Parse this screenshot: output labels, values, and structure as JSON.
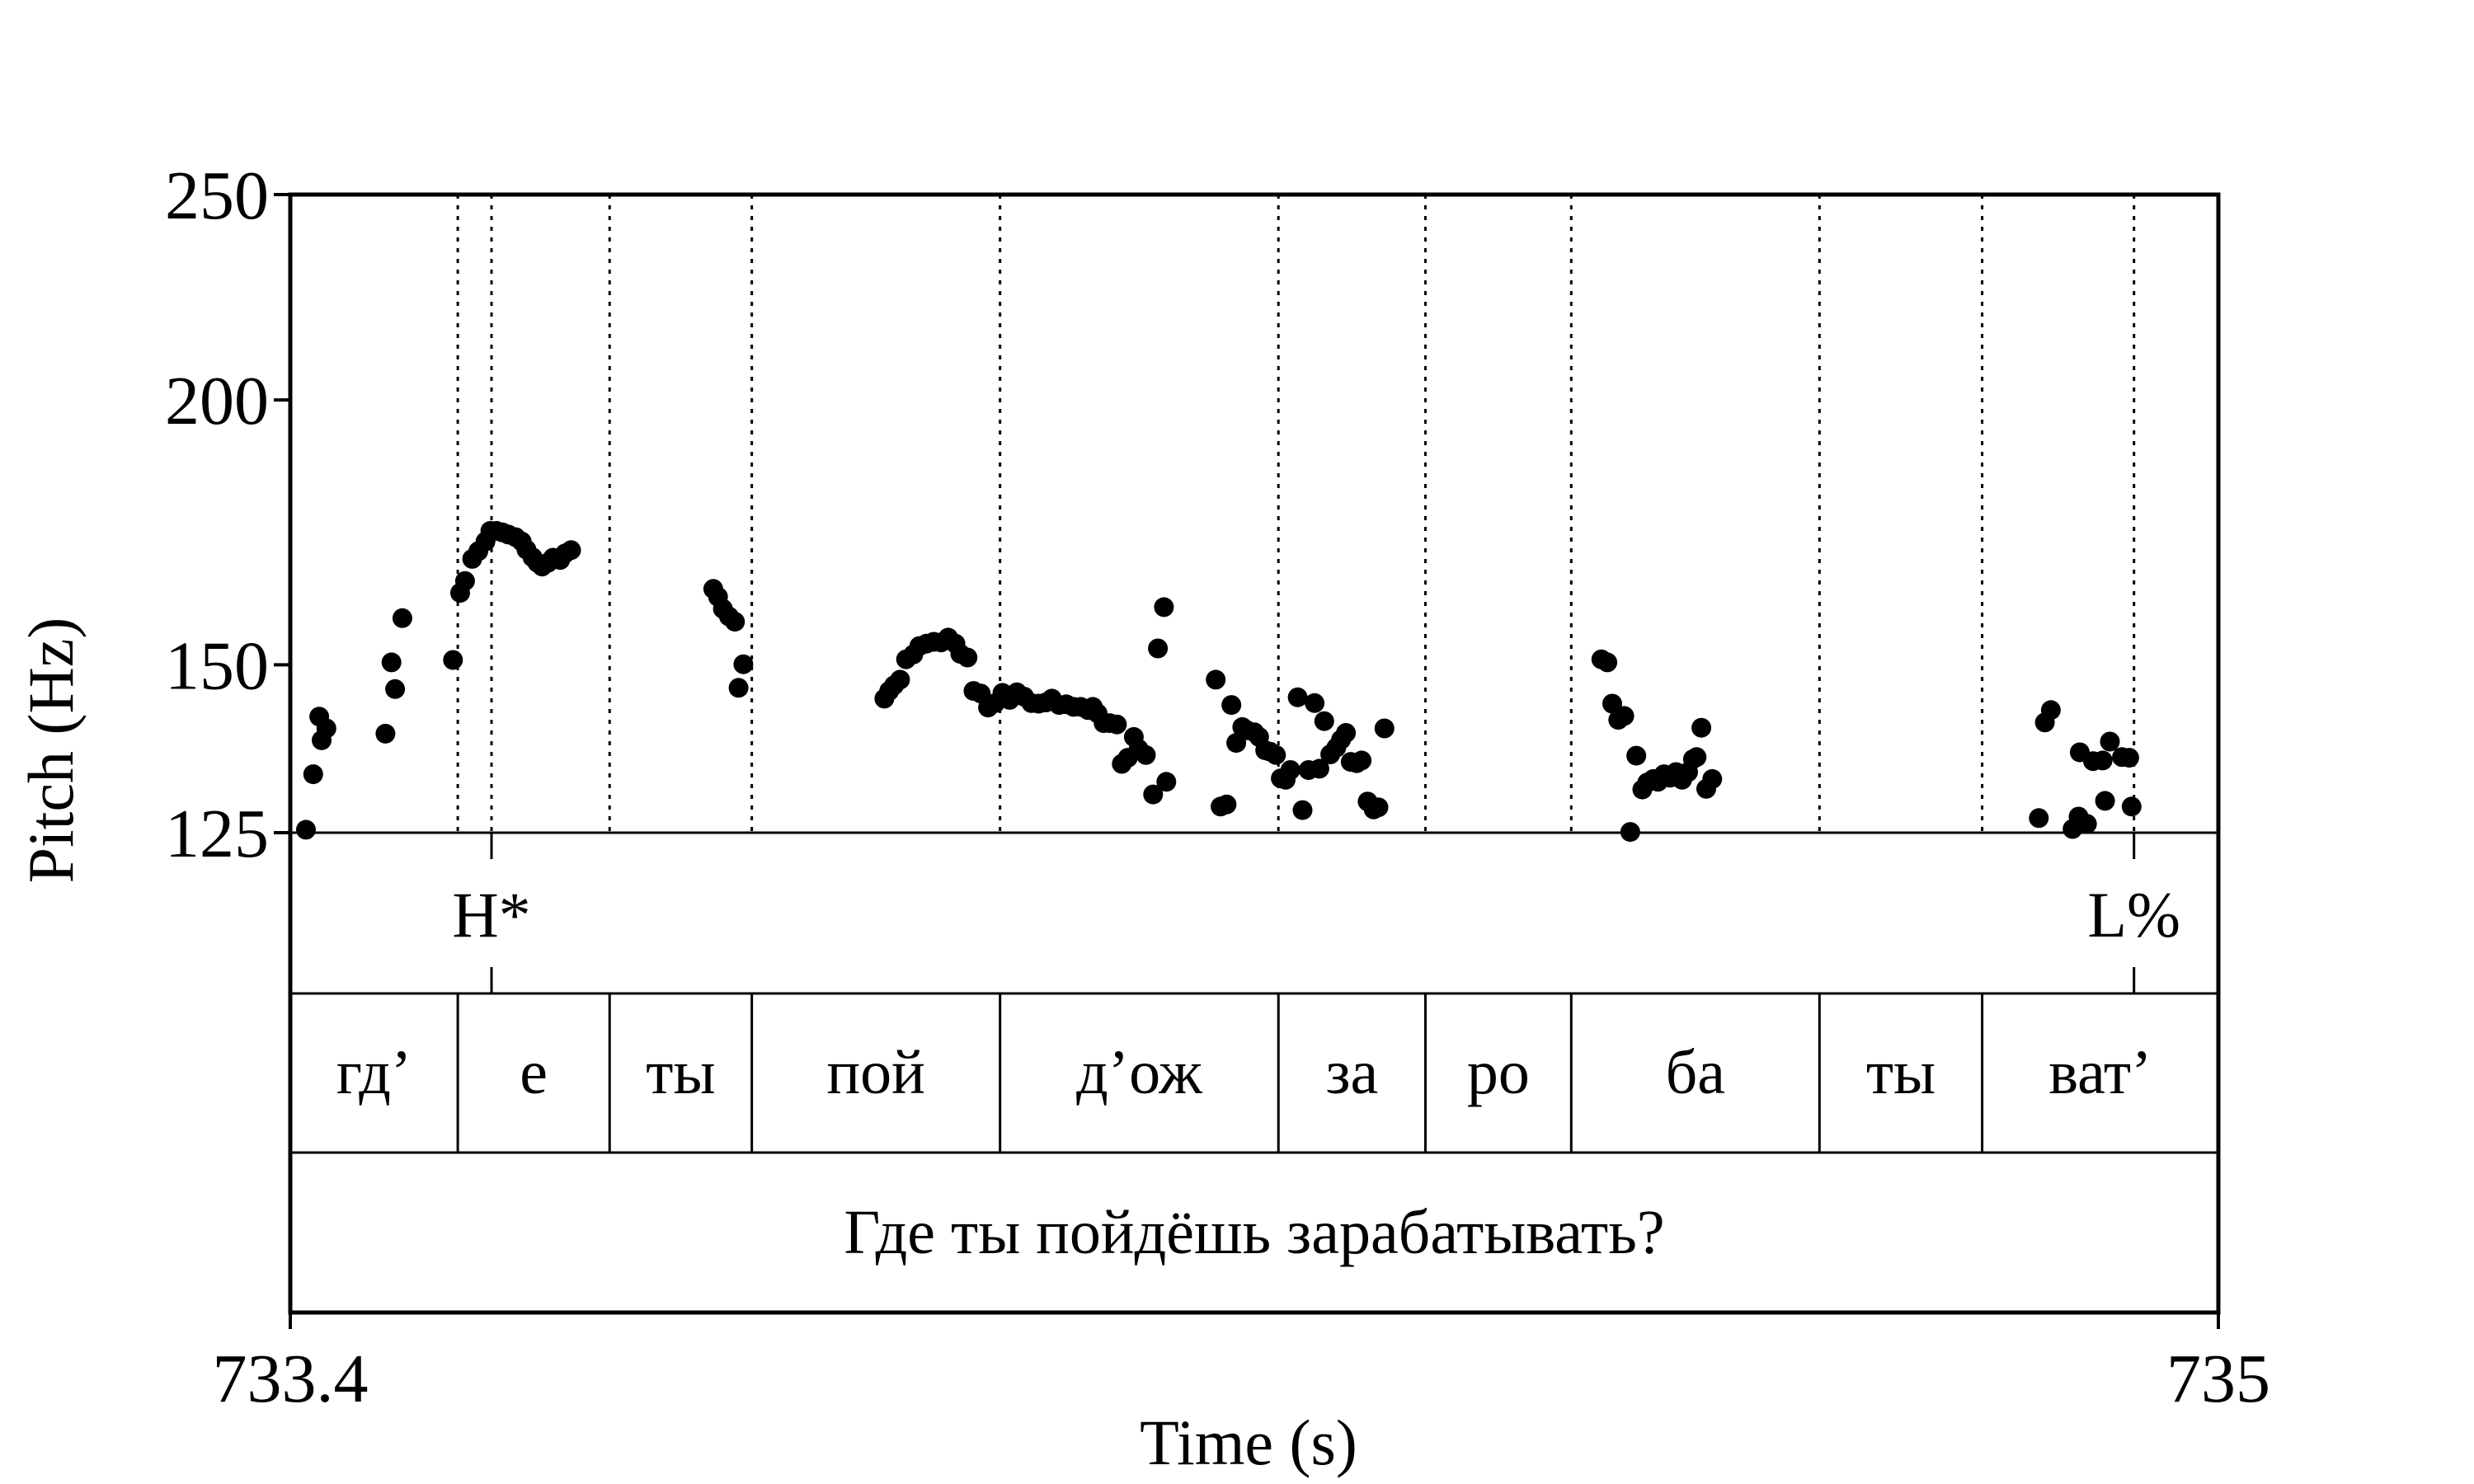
{
  "chart_data": {
    "type": "scatter",
    "xlabel": "Time (s)",
    "ylabel": "Pitch (Hz)",
    "xlim": [
      733.4,
      735.0
    ],
    "ylim": [
      125,
      250
    ],
    "y_scale": "log",
    "x_ticks": [
      "733.4",
      "735"
    ],
    "y_ticks": [
      250,
      200,
      150,
      125
    ],
    "grid": false,
    "series": [
      {
        "points": [
          [
            733.413,
            125.4
          ],
          [
            733.419,
            133.2
          ],
          [
            733.424,
            141.8
          ],
          [
            733.426,
            138.2
          ],
          [
            733.43,
            140.0
          ],
          [
            733.479,
            139.2
          ],
          [
            733.484,
            150.4
          ],
          [
            733.487,
            146.1
          ],
          [
            733.493,
            157.8
          ],
          [
            733.535,
            150.8
          ],
          [
            733.541,
            162.2
          ],
          [
            733.545,
            164.3
          ],
          [
            733.551,
            168.3
          ],
          [
            733.556,
            169.7
          ],
          [
            733.562,
            171.5
          ],
          [
            733.566,
            173.5
          ],
          [
            733.571,
            173.5
          ],
          [
            733.576,
            173.2
          ],
          [
            733.581,
            172.8
          ],
          [
            733.587,
            172.3
          ],
          [
            733.592,
            171.5
          ],
          [
            733.596,
            170.0
          ],
          [
            733.601,
            168.6
          ],
          [
            733.605,
            167.6
          ],
          [
            733.609,
            166.9
          ],
          [
            733.614,
            167.6
          ],
          [
            733.618,
            168.5
          ],
          [
            733.624,
            168.1
          ],
          [
            733.628,
            169.3
          ],
          [
            733.633,
            169.9
          ],
          [
            733.751,
            162.9
          ],
          [
            733.755,
            161.5
          ],
          [
            733.759,
            159.4
          ],
          [
            733.764,
            158.1
          ],
          [
            733.769,
            157.2
          ],
          [
            733.772,
            146.3
          ],
          [
            733.776,
            150.1
          ],
          [
            733.893,
            144.6
          ],
          [
            733.897,
            145.8
          ],
          [
            733.901,
            146.7
          ],
          [
            733.906,
            147.6
          ],
          [
            733.911,
            150.9
          ],
          [
            733.917,
            151.7
          ],
          [
            733.922,
            153.1
          ],
          [
            733.928,
            153.5
          ],
          [
            733.934,
            153.8
          ],
          [
            733.94,
            153.7
          ],
          [
            733.946,
            154.5
          ],
          [
            733.952,
            153.5
          ],
          [
            733.956,
            151.8
          ],
          [
            733.962,
            151.2
          ],
          [
            733.967,
            145.8
          ],
          [
            733.973,
            145.4
          ],
          [
            733.979,
            143.2
          ],
          [
            733.985,
            143.9
          ],
          [
            733.991,
            145.5
          ],
          [
            733.997,
            144.4
          ],
          [
            734.003,
            145.6
          ],
          [
            734.009,
            144.9
          ],
          [
            734.015,
            143.9
          ],
          [
            734.021,
            143.8
          ],
          [
            734.027,
            144.0
          ],
          [
            734.032,
            144.6
          ],
          [
            734.038,
            143.6
          ],
          [
            734.044,
            143.7
          ],
          [
            734.05,
            143.3
          ],
          [
            734.056,
            143.3
          ],
          [
            734.062,
            142.8
          ],
          [
            734.066,
            143.3
          ],
          [
            734.07,
            142.3
          ],
          [
            734.075,
            140.8
          ],
          [
            734.08,
            140.8
          ],
          [
            734.086,
            140.6
          ],
          [
            734.09,
            134.7
          ],
          [
            734.095,
            135.6
          ],
          [
            734.1,
            138.7
          ],
          [
            734.104,
            136.9
          ],
          [
            734.11,
            136.0
          ],
          [
            734.116,
            130.3
          ],
          [
            734.12,
            152.7
          ],
          [
            734.125,
            159.7
          ],
          [
            734.127,
            132.1
          ],
          [
            734.168,
            147.6
          ],
          [
            734.172,
            128.6
          ],
          [
            734.177,
            128.9
          ],
          [
            734.181,
            143.6
          ],
          [
            734.185,
            137.8
          ],
          [
            734.19,
            140.2
          ],
          [
            734.194,
            139.7
          ],
          [
            734.2,
            139.4
          ],
          [
            734.204,
            138.7
          ],
          [
            734.209,
            136.7
          ],
          [
            734.213,
            136.5
          ],
          [
            734.218,
            136.0
          ],
          [
            734.222,
            132.6
          ],
          [
            734.226,
            132.4
          ],
          [
            734.23,
            133.8
          ],
          [
            734.236,
            144.8
          ],
          [
            734.24,
            128.1
          ],
          [
            734.245,
            133.8
          ],
          [
            734.25,
            143.9
          ],
          [
            734.254,
            134.0
          ],
          [
            734.258,
            141.1
          ],
          [
            734.263,
            136.1
          ],
          [
            734.268,
            137.1
          ],
          [
            734.272,
            138.3
          ],
          [
            734.276,
            139.3
          ],
          [
            734.28,
            135.0
          ],
          [
            734.285,
            134.8
          ],
          [
            734.289,
            135.2
          ],
          [
            734.294,
            129.3
          ],
          [
            734.299,
            128.2
          ],
          [
            734.303,
            128.5
          ],
          [
            734.308,
            140.0
          ],
          [
            734.488,
            150.9
          ],
          [
            734.493,
            150.4
          ],
          [
            734.497,
            143.8
          ],
          [
            734.502,
            141.3
          ],
          [
            734.507,
            141.9
          ],
          [
            734.512,
            125.1
          ],
          [
            734.517,
            135.9
          ],
          [
            734.522,
            131.0
          ],
          [
            734.526,
            132.0
          ],
          [
            734.531,
            132.5
          ],
          [
            734.535,
            132.1
          ],
          [
            734.54,
            133.2
          ],
          [
            734.545,
            132.7
          ],
          [
            734.55,
            133.5
          ],
          [
            734.555,
            132.4
          ],
          [
            734.56,
            133.5
          ],
          [
            734.564,
            135.4
          ],
          [
            734.567,
            135.7
          ],
          [
            734.571,
            140.1
          ],
          [
            734.575,
            131.1
          ],
          [
            734.58,
            132.5
          ],
          [
            734.851,
            127.0
          ],
          [
            734.856,
            140.9
          ],
          [
            734.861,
            142.8
          ],
          [
            734.879,
            125.5
          ],
          [
            734.884,
            127.2
          ],
          [
            734.891,
            126.2
          ],
          [
            734.885,
            136.4
          ],
          [
            734.896,
            135.1
          ],
          [
            734.904,
            135.2
          ],
          [
            734.906,
            129.4
          ],
          [
            734.91,
            138.0
          ],
          [
            734.92,
            135.7
          ],
          [
            734.926,
            135.6
          ],
          [
            734.928,
            128.6
          ]
        ]
      }
    ],
    "tone_tier": {
      "marks": [
        {
          "label": "H*",
          "time": 733.567
        },
        {
          "label": "L%",
          "time": 734.93
        }
      ]
    },
    "syllable_tier": {
      "boundaries": [
        733.4,
        733.539,
        733.665,
        733.783,
        733.989,
        734.22,
        734.342,
        734.463,
        734.669,
        734.804,
        735.0
      ],
      "labels": [
        "гд’",
        "е",
        "ты",
        "пой",
        "д’ож",
        "за",
        "ро",
        "ба",
        "ты",
        "ват’"
      ]
    },
    "sentence_tier": {
      "text": "Где ты пойдёшь зарабатывать?"
    }
  }
}
